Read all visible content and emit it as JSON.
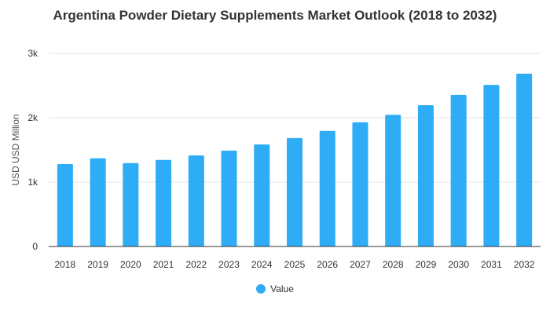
{
  "chart_data": {
    "type": "bar",
    "title": "Argentina Powder Dietary Supplements Market Outlook (2018 to 2032)",
    "xlabel": "",
    "ylabel": "USD USD Million",
    "ylim": [
      0,
      3000
    ],
    "yticks": [
      0,
      1000,
      2000,
      3000
    ],
    "ytick_labels": [
      "0",
      "1k",
      "2k",
      "3k"
    ],
    "categories": [
      "2018",
      "2019",
      "2020",
      "2021",
      "2022",
      "2023",
      "2024",
      "2025",
      "2026",
      "2027",
      "2028",
      "2029",
      "2030",
      "2031",
      "2032"
    ],
    "series": [
      {
        "name": "Value",
        "color": "#2eacf6",
        "values": [
          1280,
          1370,
          1295,
          1345,
          1415,
          1490,
          1585,
          1685,
          1795,
          1930,
          2045,
          2195,
          2355,
          2510,
          2685
        ]
      }
    ],
    "grid": true,
    "legend_position": "bottom"
  }
}
